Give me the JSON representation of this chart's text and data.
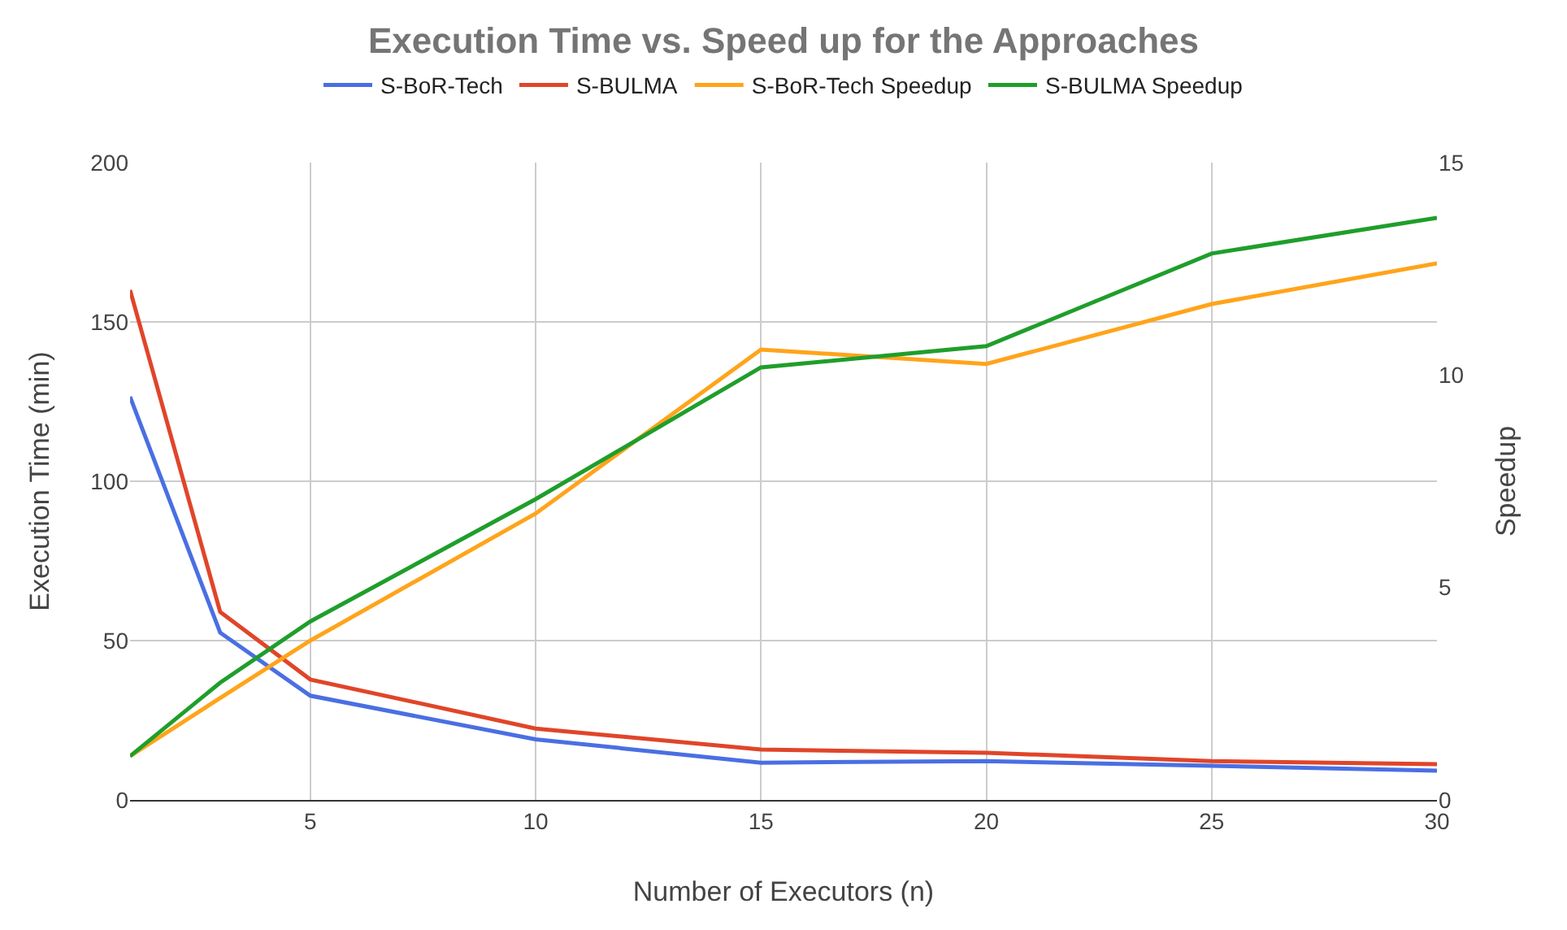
{
  "chart_data": {
    "type": "line",
    "title": "Execution Time vs. Speed up for the Approaches",
    "xlabel": "Number of Executors (n)",
    "ylabel": "Execution Time (min)",
    "y2label": "Speedup",
    "x": [
      1,
      3,
      5,
      10,
      15,
      20,
      25,
      30
    ],
    "series": [
      {
        "name": "S-BoR-Tech",
        "color": "#4a6fe3",
        "values": [
          126.5,
          52.5,
          32.7,
          19,
          11.7,
          12.2,
          10.7,
          9.2
        ]
      },
      {
        "name": "S-BULMA",
        "color": "#e0452a",
        "values": [
          160,
          59,
          37.8,
          22.4,
          15.8,
          14.8,
          12.2,
          11.2
        ]
      },
      {
        "name": "S-BoR-Tech Speedup",
        "color": "#ffa41b",
        "axis": "y2",
        "values": [
          1.03,
          2.4,
          3.75,
          6.74,
          10.6,
          10.26,
          11.67,
          12.63
        ]
      },
      {
        "name": "S-BULMA Speedup",
        "color": "#1f9e2b",
        "axis": "y2",
        "values": [
          1.03,
          2.76,
          4.2,
          7.08,
          10.18,
          10.68,
          12.86,
          13.7
        ]
      }
    ],
    "xlim": [
      1,
      30
    ],
    "xticks": [
      5,
      10,
      15,
      20,
      25,
      30
    ],
    "ylim": [
      0,
      200
    ],
    "yticks": [
      0,
      50,
      100,
      150,
      200
    ],
    "y2lim": [
      0,
      15
    ],
    "y2ticks": [
      0,
      5,
      10,
      15
    ],
    "grid": true,
    "legend": "top",
    "marker": "none",
    "line_style": "solid"
  }
}
